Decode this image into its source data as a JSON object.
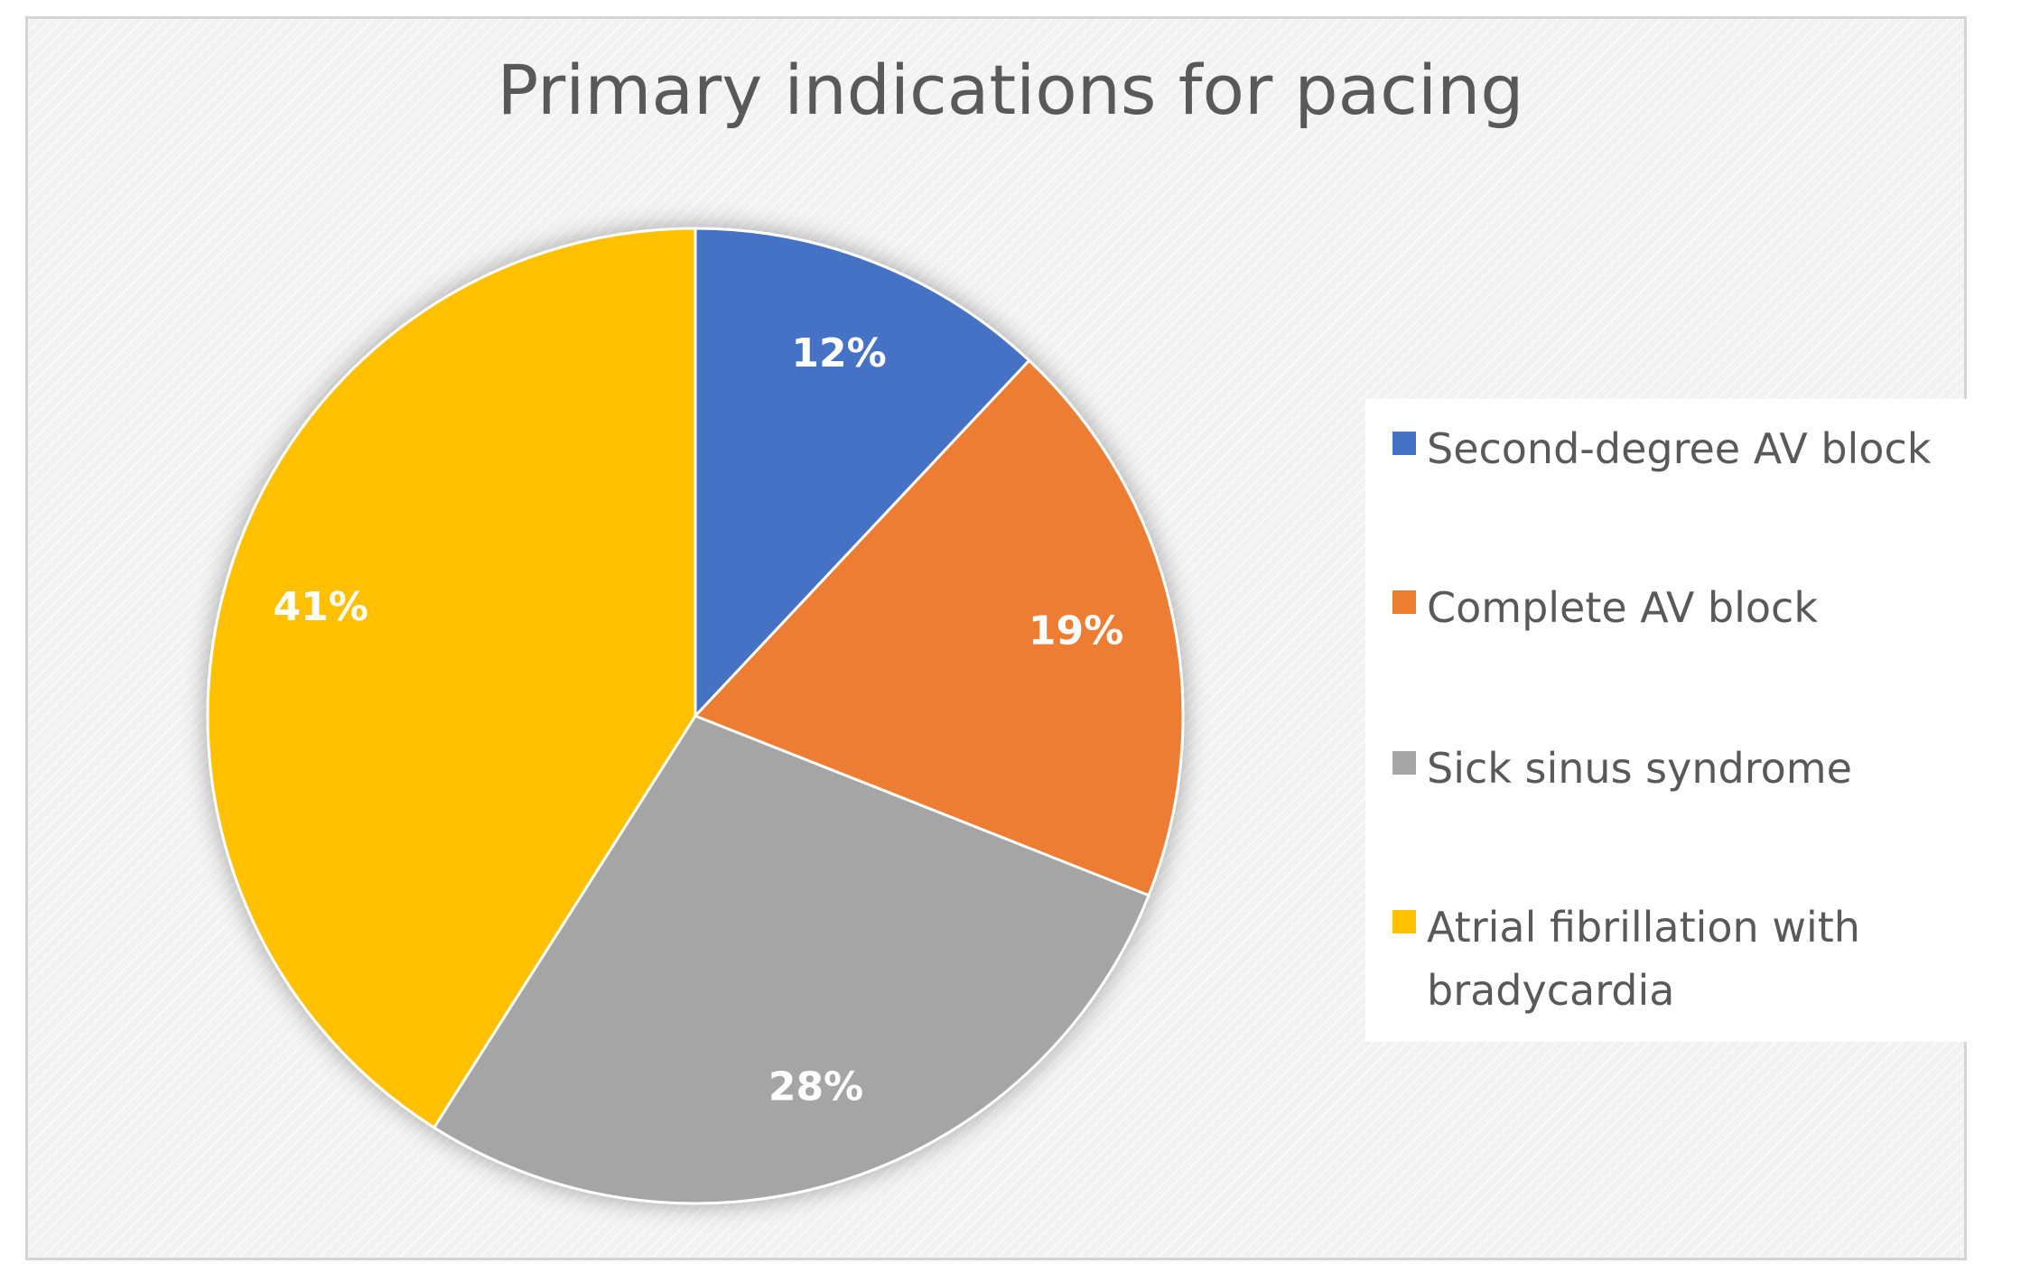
{
  "chart_data": {
    "type": "pie",
    "title": "Primary indications for pacing",
    "legend_position": "right",
    "slices": [
      {
        "label": "Second-degree AV block",
        "value": 12,
        "display": "12%",
        "color": "#4472C4"
      },
      {
        "label": "Complete AV block",
        "value": 19,
        "display": "19%",
        "color": "#ED7D31"
      },
      {
        "label": "Sick sinus syndrome",
        "value": 28,
        "display": "28%",
        "color": "#A5A5A5"
      },
      {
        "label": "Atrial fibrillation with bradycardia",
        "value": 41,
        "display": "41%",
        "color": "#FFC000"
      }
    ]
  }
}
